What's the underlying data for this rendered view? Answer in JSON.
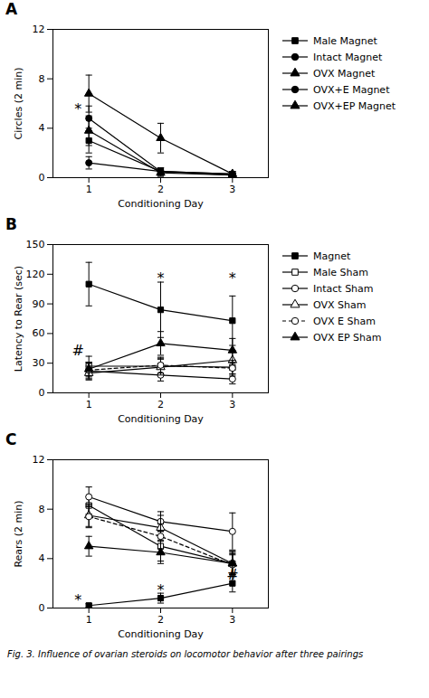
{
  "chart_data": [
    {
      "type": "line",
      "title": "A",
      "xlabel": "Conditioning Day",
      "ylabel": "Circles (2 min)",
      "x": [
        1,
        2,
        3
      ],
      "xlim": [
        0.5,
        3.5
      ],
      "xticks": [
        1,
        2,
        3
      ],
      "ylim": [
        0,
        12
      ],
      "yticks": [
        0,
        4,
        8,
        12
      ],
      "grid": false,
      "legend": "right",
      "color": "black",
      "series": [
        {
          "name": "Male Magnet",
          "marker": "square",
          "line_style": "solid",
          "values": [
            3.0,
            0.5,
            0.2
          ],
          "yerr": [
            1.0,
            0.3,
            0.15
          ]
        },
        {
          "name": "Intact Magnet",
          "marker": "circle",
          "line_style": "solid",
          "values": [
            1.2,
            0.5,
            0.3
          ],
          "yerr": [
            0.5,
            0.3,
            0.2
          ]
        },
        {
          "name": "OVX Magnet",
          "marker": "triangle",
          "line_style": "solid",
          "values": [
            3.8,
            0.4,
            0.2
          ],
          "yerr": [
            1.2,
            0.3,
            0.15
          ]
        },
        {
          "name": "OVX+E Magnet",
          "marker": "circle",
          "line_style": "solid",
          "values": [
            4.8,
            0.5,
            0.3
          ],
          "yerr": [
            1.0,
            0.3,
            0.2
          ]
        },
        {
          "name": "OVX+EP Magnet",
          "marker": "triangle",
          "line_style": "solid",
          "values": [
            6.8,
            3.2,
            0.3
          ],
          "yerr": [
            1.5,
            1.2,
            0.2
          ]
        }
      ],
      "annotations": [
        {
          "x": 0.85,
          "y": 5.5,
          "text": "*"
        }
      ]
    },
    {
      "type": "line",
      "title": "B",
      "xlabel": "Conditioning Day",
      "ylabel": "Latency to Rear (sec)",
      "x": [
        1,
        2,
        3
      ],
      "xlim": [
        0.5,
        3.5
      ],
      "xticks": [
        1,
        2,
        3
      ],
      "ylim": [
        0,
        150
      ],
      "yticks": [
        0,
        30,
        60,
        90,
        120,
        150
      ],
      "grid": false,
      "legend": "right",
      "color": "black",
      "series": [
        {
          "name": "Magnet",
          "marker": "square",
          "line_style": "solid",
          "values": [
            110,
            84,
            73
          ],
          "yerr": [
            22,
            28,
            25
          ]
        },
        {
          "name": "Male Sham",
          "marker": "square-open",
          "line_style": "solid",
          "values": [
            27,
            27,
            26
          ],
          "yerr": [
            10,
            8,
            7
          ]
        },
        {
          "name": "Intact Sham",
          "marker": "circle-open",
          "line_style": "solid",
          "values": [
            22,
            18,
            14
          ],
          "yerr": [
            8,
            6,
            5
          ]
        },
        {
          "name": "OVX Sham",
          "marker": "triangle-open",
          "line_style": "solid",
          "values": [
            20,
            26,
            33
          ],
          "yerr": [
            7,
            8,
            10
          ]
        },
        {
          "name": "OVX E Sham",
          "marker": "circle-open",
          "line_style": "dashed",
          "values": [
            23,
            28,
            25
          ],
          "yerr": [
            8,
            8,
            8
          ]
        },
        {
          "name": "OVX EP Sham",
          "marker": "triangle",
          "line_style": "solid",
          "values": [
            24,
            50,
            43
          ],
          "yerr": [
            7,
            12,
            12
          ]
        }
      ],
      "annotations": [
        {
          "x": 2.0,
          "y": 116,
          "text": "*"
        },
        {
          "x": 3.0,
          "y": 116,
          "text": "*"
        },
        {
          "x": 0.85,
          "y": 43,
          "text": "#"
        }
      ]
    },
    {
      "type": "line",
      "title": "C",
      "xlabel": "Conditioning Day",
      "ylabel": "Rears (2 min)",
      "x": [
        1,
        2,
        3
      ],
      "xlim": [
        0.5,
        3.5
      ],
      "xticks": [
        1,
        2,
        3
      ],
      "ylim": [
        0,
        12
      ],
      "yticks": [
        0,
        4,
        8,
        12
      ],
      "grid": false,
      "legend": false,
      "color": "black",
      "series": [
        {
          "name": "Magnet",
          "marker": "square",
          "line_style": "solid",
          "values": [
            0.2,
            0.8,
            2.0
          ],
          "yerr": [
            0.15,
            0.4,
            0.7
          ]
        },
        {
          "name": "Male Sham",
          "marker": "square-open",
          "line_style": "solid",
          "values": [
            8.3,
            5.0,
            3.6
          ],
          "yerr": [
            0.7,
            1.2,
            1.0
          ]
        },
        {
          "name": "Intact Sham",
          "marker": "circle-open",
          "line_style": "solid",
          "values": [
            9.0,
            7.0,
            6.2
          ],
          "yerr": [
            0.8,
            0.8,
            1.5
          ]
        },
        {
          "name": "OVX Sham",
          "marker": "triangle-open",
          "line_style": "solid",
          "values": [
            7.5,
            6.5,
            3.6
          ],
          "yerr": [
            0.9,
            1.0,
            0.9
          ]
        },
        {
          "name": "OVX E Sham",
          "marker": "circle-open",
          "line_style": "dashed",
          "values": [
            7.4,
            5.8,
            3.5
          ],
          "yerr": [
            0.9,
            1.0,
            0.8
          ]
        },
        {
          "name": "OVX EP Sham",
          "marker": "triangle",
          "line_style": "solid",
          "values": [
            5.0,
            4.5,
            3.6
          ],
          "yerr": [
            0.8,
            0.9,
            0.8
          ]
        }
      ],
      "annotations": [
        {
          "x": 0.85,
          "y": 0.65,
          "text": "*"
        },
        {
          "x": 2.0,
          "y": 1.4,
          "text": "*"
        },
        {
          "x": 3.0,
          "y": 2.7,
          "text": "#"
        }
      ]
    }
  ],
  "caption": "Fig. 3.  Influence of ovarian steroids on locomotor behavior after three pairings"
}
